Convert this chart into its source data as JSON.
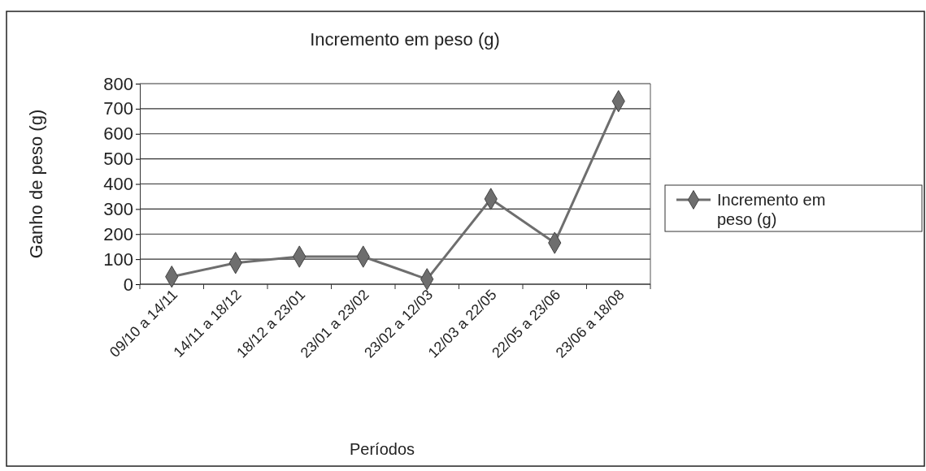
{
  "chart_data": {
    "type": "line",
    "title": "Incremento em peso (g)",
    "xlabel": "Períodos",
    "ylabel": "Ganho de peso (g)",
    "categories": [
      "09/10 a 14/11",
      "14/11 a 18/12",
      "18/12 a 23/01",
      "23/01 a 23/02",
      "23/02 a 12/03",
      "12/03 a 22/05",
      "22/05 a 23/06",
      "23/06 a 18/08"
    ],
    "series": [
      {
        "name": "Incremento em peso (g)",
        "color": "#6e6e6e",
        "values": [
          30,
          85,
          110,
          110,
          20,
          340,
          165,
          730
        ]
      }
    ],
    "ylim": [
      0,
      800
    ],
    "yticks": [
      0,
      100,
      200,
      300,
      400,
      500,
      600,
      700,
      800
    ],
    "grid": "y",
    "legend": "right",
    "marker": "diamond",
    "line_style": "solid"
  }
}
